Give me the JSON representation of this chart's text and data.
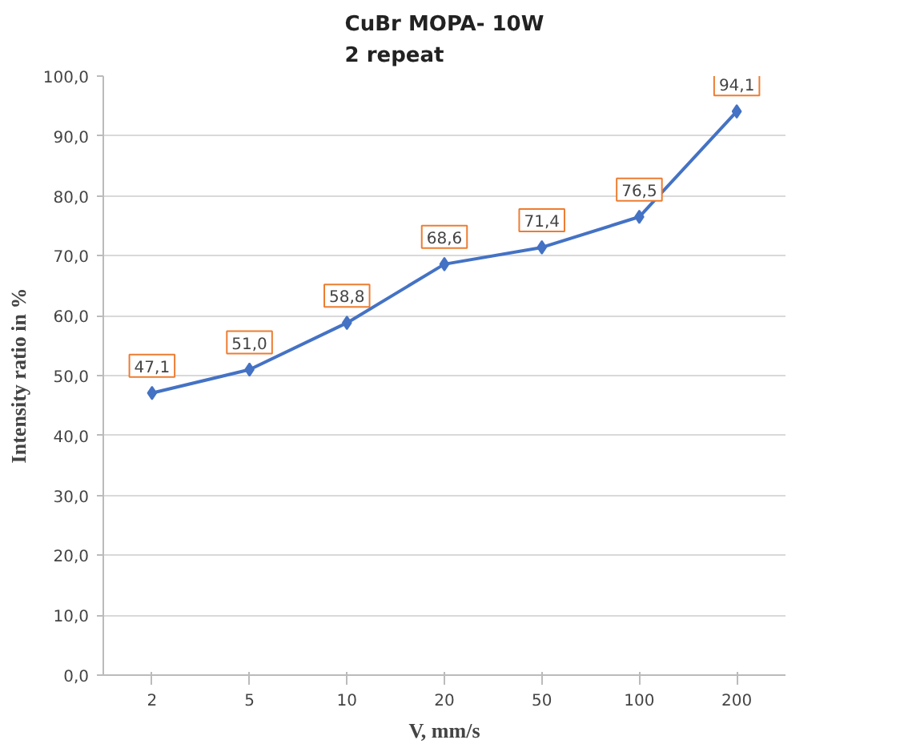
{
  "chart_data": {
    "type": "line",
    "title": "CuBr MOPA- 10W\n2 repeat",
    "xlabel": "V, mm/s",
    "ylabel": "Intensity ratio in %",
    "categories": [
      "2",
      "5",
      "10",
      "20",
      "50",
      "100",
      "200"
    ],
    "series": [
      {
        "color": "#4472c4",
        "values": [
          47.1,
          51.0,
          58.8,
          68.6,
          71.4,
          76.5,
          94.1
        ]
      }
    ],
    "value_labels": [
      "47,1",
      "51,0",
      "58,8",
      "68,6",
      "71,4",
      "76,5",
      "94,1"
    ],
    "ylim": [
      0,
      100
    ],
    "yticks": [
      {
        "value": 0,
        "label": "0,0"
      },
      {
        "value": 10,
        "label": "10,0"
      },
      {
        "value": 20,
        "label": "20,0"
      },
      {
        "value": 30,
        "label": "30,0"
      },
      {
        "value": 40,
        "label": "40,0"
      },
      {
        "value": 50,
        "label": "50,0"
      },
      {
        "value": 60,
        "label": "60,0"
      },
      {
        "value": 70,
        "label": "70,0"
      },
      {
        "value": 80,
        "label": "80,0"
      },
      {
        "value": 90,
        "label": "90,0"
      },
      {
        "value": 100,
        "label": "100,0"
      }
    ],
    "grid": "y",
    "marker": "diamond",
    "line_style": "solid"
  }
}
